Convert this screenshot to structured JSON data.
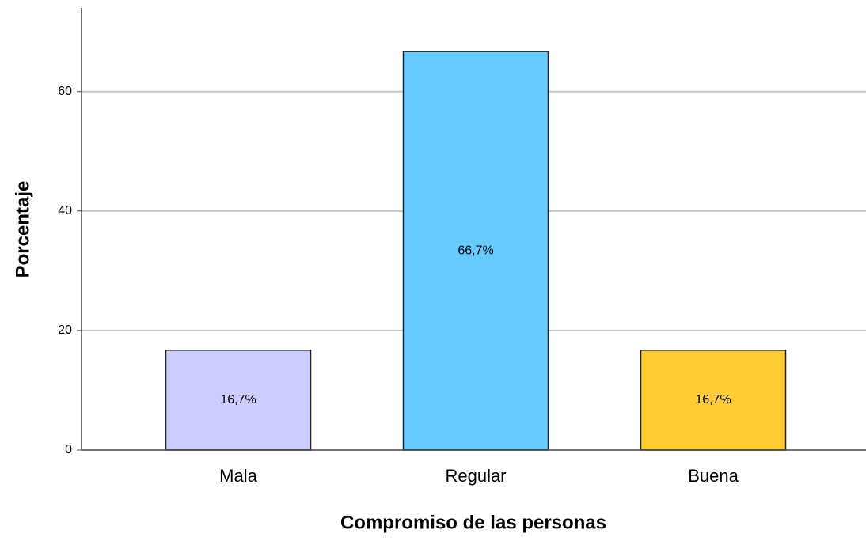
{
  "chart_data": {
    "type": "bar",
    "x_label": "Compromiso de las personas",
    "y_label": "Porcentaje",
    "categories": [
      "Mala",
      "Regular",
      "Buena"
    ],
    "values": [
      16.7,
      66.7,
      16.7
    ],
    "value_labels": [
      "16,7%",
      "66,7%",
      "16,7%"
    ],
    "colors": [
      "#ccccff",
      "#66ccff",
      "#ffcc33"
    ],
    "ylim": [
      0,
      74
    ],
    "yticks": [
      0,
      20,
      40,
      60
    ],
    "grid": true
  }
}
